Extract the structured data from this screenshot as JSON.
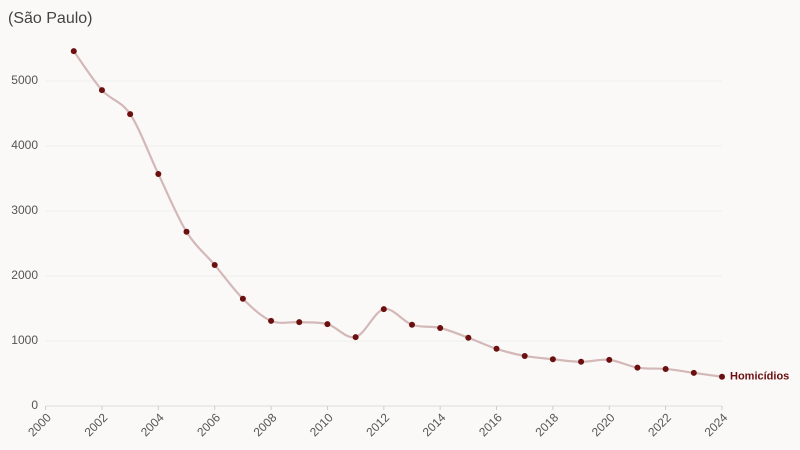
{
  "chart_data": {
    "type": "line",
    "title": "(São Paulo)",
    "x": [
      2001,
      2002,
      2003,
      2004,
      2005,
      2006,
      2007,
      2008,
      2009,
      2010,
      2011,
      2012,
      2013,
      2014,
      2015,
      2016,
      2017,
      2018,
      2019,
      2020,
      2021,
      2022,
      2023,
      2024
    ],
    "series": [
      {
        "name": "Homicídios",
        "color": "#6b0f0f",
        "line_color": "#d4b8b8",
        "values": [
          5460,
          4860,
          4490,
          3570,
          2680,
          2170,
          1650,
          1310,
          1290,
          1260,
          1060,
          1490,
          1250,
          1200,
          1050,
          880,
          770,
          720,
          680,
          710,
          590,
          570,
          510,
          450
        ]
      }
    ],
    "xlim": [
      2000,
      2024
    ],
    "xticks": [
      2000,
      2002,
      2004,
      2006,
      2008,
      2010,
      2012,
      2014,
      2016,
      2018,
      2020,
      2022,
      2024
    ],
    "ylim": [
      0,
      5500
    ],
    "yticks": [
      0,
      1000,
      2000,
      3000,
      4000,
      5000
    ],
    "grid": true
  }
}
